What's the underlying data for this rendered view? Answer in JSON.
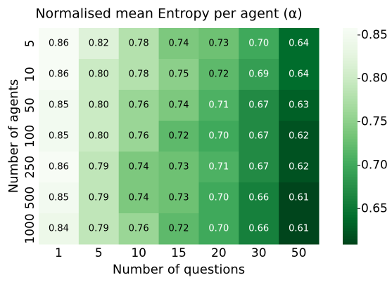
{
  "chart_data": {
    "type": "heatmap",
    "title": "Normalised mean Entropy per agent (α)",
    "xlabel": "Number of questions",
    "ylabel": "Number of agents",
    "x_categories": [
      "1",
      "5",
      "10",
      "15",
      "20",
      "30",
      "50"
    ],
    "y_categories": [
      "5",
      "10",
      "50",
      "100",
      "250",
      "500",
      "1000"
    ],
    "values": [
      [
        0.86,
        0.82,
        0.78,
        0.74,
        0.73,
        0.7,
        0.64
      ],
      [
        0.86,
        0.8,
        0.78,
        0.75,
        0.72,
        0.69,
        0.64
      ],
      [
        0.85,
        0.8,
        0.76,
        0.74,
        0.71,
        0.67,
        0.63
      ],
      [
        0.85,
        0.8,
        0.76,
        0.72,
        0.7,
        0.67,
        0.62
      ],
      [
        0.86,
        0.79,
        0.74,
        0.73,
        0.71,
        0.67,
        0.62
      ],
      [
        0.85,
        0.79,
        0.74,
        0.73,
        0.7,
        0.66,
        0.61
      ],
      [
        0.84,
        0.79,
        0.76,
        0.72,
        0.7,
        0.66,
        0.61
      ]
    ],
    "value_labels": [
      [
        "0.86",
        "0.82",
        "0.78",
        "0.74",
        "0.73",
        "0.70",
        "0.64"
      ],
      [
        "0.86",
        "0.80",
        "0.78",
        "0.75",
        "0.72",
        "0.69",
        "0.64"
      ],
      [
        "0.85",
        "0.80",
        "0.76",
        "0.74",
        "0.71",
        "0.67",
        "0.63"
      ],
      [
        "0.85",
        "0.80",
        "0.76",
        "0.72",
        "0.70",
        "0.67",
        "0.62"
      ],
      [
        "0.86",
        "0.79",
        "0.74",
        "0.73",
        "0.71",
        "0.67",
        "0.62"
      ],
      [
        "0.85",
        "0.79",
        "0.74",
        "0.73",
        "0.70",
        "0.66",
        "0.61"
      ],
      [
        "0.84",
        "0.79",
        "0.76",
        "0.72",
        "0.70",
        "0.66",
        "0.61"
      ]
    ],
    "colormap": "Greens_r",
    "zlim": [
      0.609,
      0.858
    ],
    "zticks": [
      0.65,
      {
        "value": 0.7,
        "label": "0.70"
      },
      0.75,
      {
        "value": 0.8,
        "label": "0.80"
      },
      0.85
    ]
  }
}
